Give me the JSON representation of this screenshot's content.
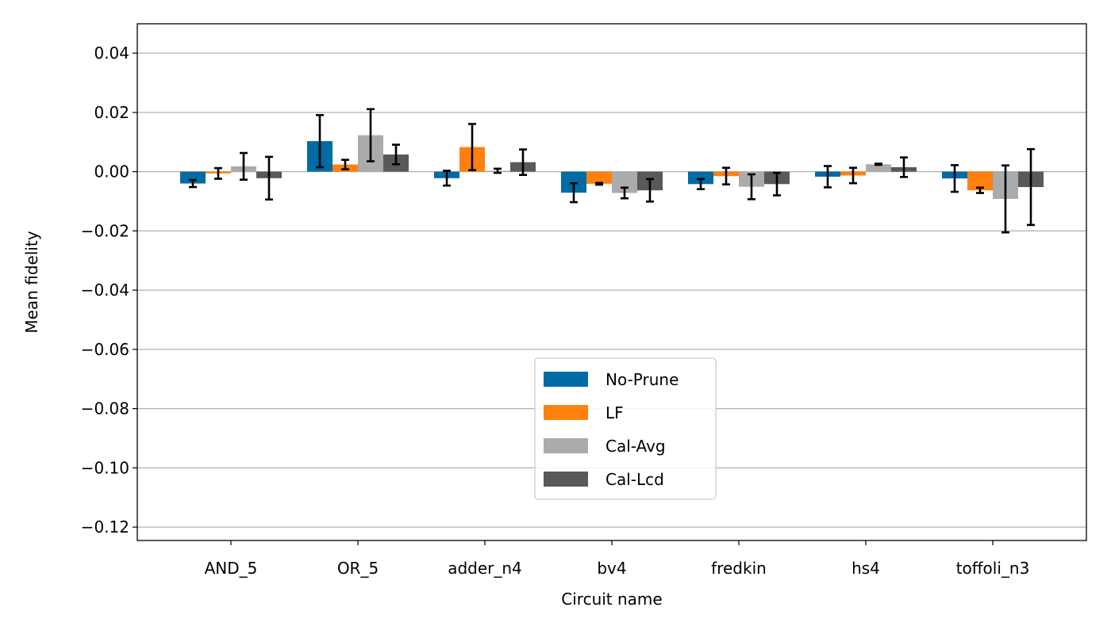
{
  "chart_data": {
    "type": "bar",
    "title": "",
    "xlabel": "Circuit name",
    "ylabel": "Mean fidelity",
    "ylim": [
      -0.125,
      0.05
    ],
    "yticks": [
      0.04,
      0.02,
      0.0,
      -0.02,
      -0.04,
      -0.06,
      -0.08,
      -0.1,
      -0.12
    ],
    "ytick_labels": [
      "0.04",
      "0.02",
      "0.00",
      "−0.02",
      "−0.04",
      "−0.06",
      "−0.08",
      "−0.10",
      "−0.12"
    ],
    "grid": "horizontal",
    "legend_position": "lower-center",
    "categories": [
      "AND_5",
      "OR_5",
      "adder_n4",
      "bv4",
      "fredkin",
      "hs4",
      "toffoli_n3"
    ],
    "series": [
      {
        "name": "No-Prune",
        "color": "#006ba4",
        "values": [
          -0.004,
          0.0103,
          -0.0022,
          -0.0071,
          -0.0042,
          -0.0017,
          -0.0023
        ],
        "errors": [
          0.0012,
          0.0088,
          0.0025,
          0.0032,
          0.0017,
          0.0036,
          0.0045
        ]
      },
      {
        "name": "LF",
        "color": "#ff800e",
        "values": [
          -0.0006,
          0.0024,
          0.0083,
          -0.0041,
          -0.0015,
          -0.0013,
          -0.0063
        ],
        "errors": [
          0.0018,
          0.0016,
          0.0078,
          0.0003,
          0.0028,
          0.0026,
          0.0009
        ]
      },
      {
        "name": "Cal-Avg",
        "color": "#ababab",
        "values": [
          0.0018,
          0.0123,
          0.0003,
          -0.0072,
          -0.0051,
          0.0025,
          -0.0092
        ],
        "errors": [
          0.0045,
          0.0088,
          0.0007,
          0.0018,
          0.0042,
          0.0002,
          0.0113
        ]
      },
      {
        "name": "Cal-Lcd",
        "color": "#595959",
        "values": [
          -0.0022,
          0.0058,
          0.0032,
          -0.0063,
          -0.0042,
          0.0015,
          -0.0052
        ],
        "errors": [
          0.0072,
          0.0033,
          0.0043,
          0.0038,
          0.0038,
          0.0033,
          0.0128
        ]
      }
    ]
  }
}
